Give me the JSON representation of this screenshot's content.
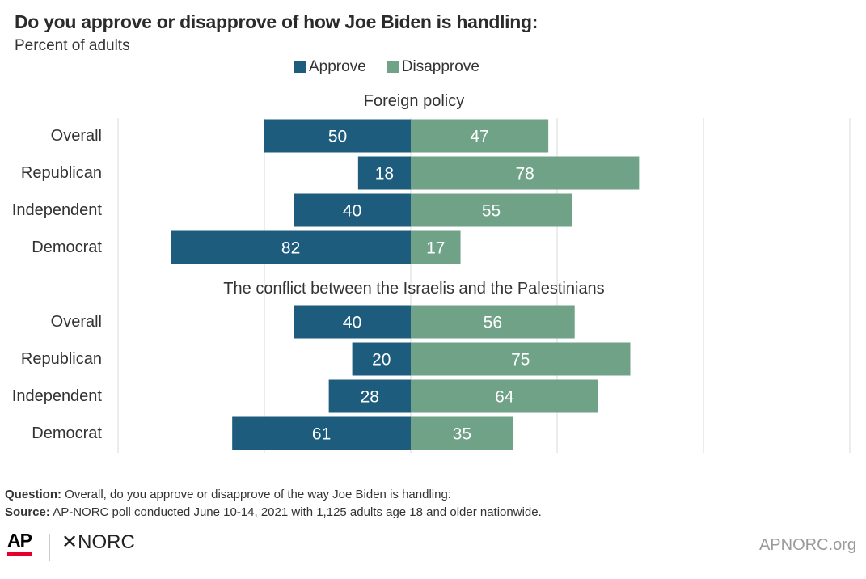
{
  "title": "Do you approve or disapprove of how Joe Biden is handling:",
  "subtitle": "Percent of adults",
  "legend": [
    {
      "label": "Approve",
      "color": "#1d5c7d"
    },
    {
      "label": "Disapprove",
      "color": "#6fa287"
    }
  ],
  "chart_data": {
    "type": "bar",
    "orientation": "horizontal-diverging",
    "series_names": [
      "Approve",
      "Disapprove"
    ],
    "colors": {
      "Approve": "#1d5c7d",
      "Disapprove": "#6fa287",
      "label": "#ffffff",
      "grid": "#d9d9d9"
    },
    "xlim": [
      -100,
      150
    ],
    "grid": true,
    "legend_position": "top",
    "panels": [
      {
        "title": "Foreign policy",
        "categories": [
          "Overall",
          "Republican",
          "Independent",
          "Democrat"
        ],
        "approve": [
          50,
          18,
          40,
          82
        ],
        "disapprove": [
          47,
          78,
          55,
          17
        ]
      },
      {
        "title": "The conflict between the Israelis and the Palestinians",
        "categories": [
          "Overall",
          "Republican",
          "Independent",
          "Democrat"
        ],
        "approve": [
          40,
          20,
          28,
          61
        ],
        "disapprove": [
          56,
          75,
          64,
          35
        ]
      }
    ]
  },
  "footer": {
    "question_label": "Question:",
    "question_text": " Overall, do you approve or disapprove of the way Joe Biden is handling:",
    "source_label": "Source:",
    "source_text": " AP-NORC poll conducted June 10-14, 2021 with 1,125 adults age 18 and older nationwide.",
    "logo_ap": "AP",
    "logo_norc": "✕NORC",
    "site": "APNORC.org"
  }
}
